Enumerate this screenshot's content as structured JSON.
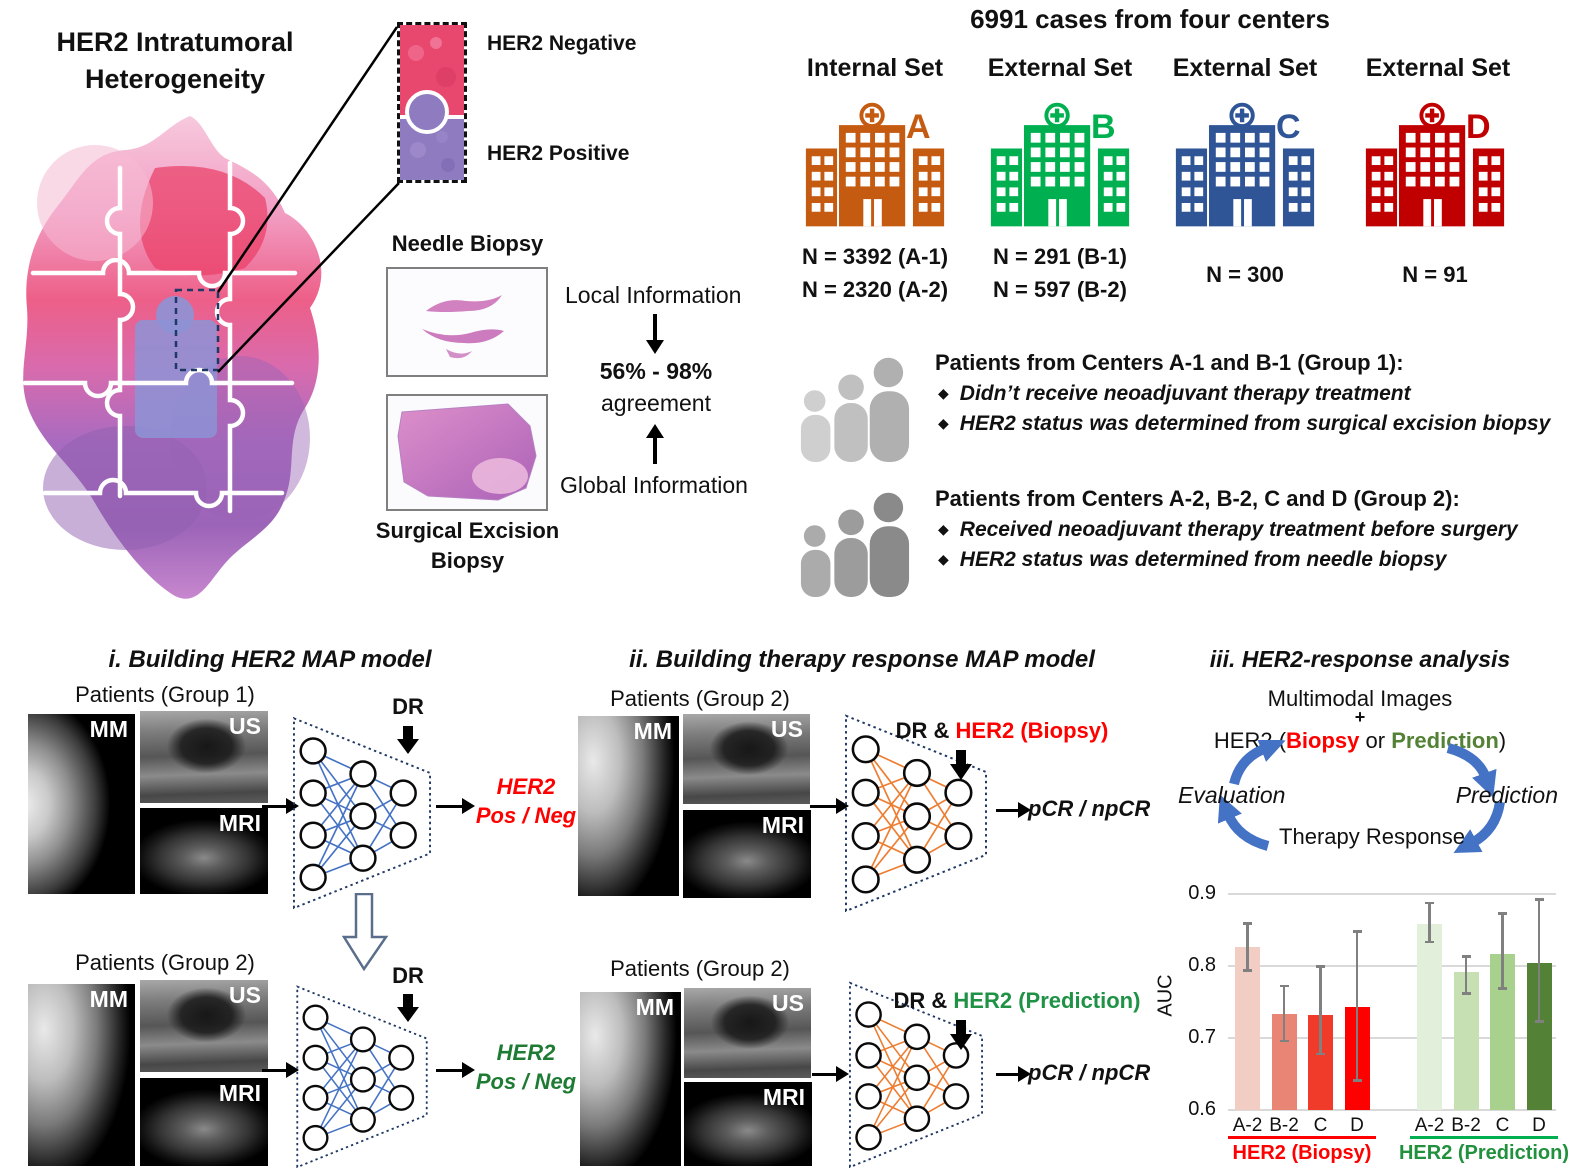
{
  "top_left": {
    "title_lines": [
      "HER2 Intratumoral",
      "Heterogeneity"
    ],
    "her2_negative": "HER2 Negative",
    "her2_positive": "HER2 Positive",
    "needle_biopsy": "Needle Biopsy",
    "surgical_lines": [
      "Surgical Excision",
      "Biopsy"
    ],
    "local_information": "Local Information",
    "agreement_value": "56% - 98%",
    "agreement_word": "agreement",
    "global_information": "Global Information"
  },
  "top_right": {
    "title": "6991 cases from four centers",
    "centers": [
      {
        "set_label": "Internal Set",
        "letter": "A",
        "color": "#C55A11",
        "n_line1": "N = 3392 (A-1)",
        "n_line2": "N = 2320 (A-2)"
      },
      {
        "set_label": "External Set",
        "letter": "B",
        "color": "#00B050",
        "n_line1": "N = 291 (B-1)",
        "n_line2": "N = 597 (B-2)"
      },
      {
        "set_label": "External Set",
        "letter": "C",
        "color": "#2F5597",
        "n_line1": "N = 300"
      },
      {
        "set_label": "External Set",
        "letter": "D",
        "color": "#C00000",
        "n_line1": "N = 91"
      }
    ],
    "bullet_char": "◆",
    "groups": [
      {
        "title": "Patients from Centers A-1 and B-1 (Group 1):",
        "bullet1": "Didn’t receive neoadjuvant therapy treatment",
        "bullet2": "HER2 status was determined from surgical excision biopsy"
      },
      {
        "title": "Patients from Centers A-2, B-2, C and D (Group 2):",
        "bullet1": "Received neoadjuvant therapy treatment before surgery",
        "bullet2": "HER2 status was determined from needle biopsy"
      }
    ]
  },
  "panels": {
    "i": {
      "title": "i. Building HER2 MAP model",
      "edge_color": "#4472C4",
      "rows": [
        {
          "patients": "Patients (Group 1)",
          "mm": "MM",
          "us": "US",
          "mri": "MRI",
          "dr": "DR",
          "out1": "HER2",
          "out2": "Pos / Neg",
          "out_color": "#FF0000"
        },
        {
          "patients": "Patients (Group 2)",
          "mm": "MM",
          "us": "US",
          "mri": "MRI",
          "dr": "DR",
          "out1": "HER2",
          "out2": "Pos / Neg",
          "out_color": "#1E7B34"
        }
      ]
    },
    "ii": {
      "title": "ii. Building therapy response MAP model",
      "edge_color": "#ED7D31",
      "rows": [
        {
          "patients": "Patients (Group 2)",
          "mm": "MM",
          "us": "US",
          "mri": "MRI",
          "dr_prefix": "DR & ",
          "dr_tag": "HER2 (Biopsy)",
          "tag_color": "#FF0000",
          "output": "pCR / npCR"
        },
        {
          "patients": "Patients (Group 2)",
          "mm": "MM",
          "us": "US",
          "mri": "MRI",
          "dr_prefix": "DR & ",
          "dr_tag": "HER2 (Prediction)",
          "tag_color": "#1F9246",
          "output": "pCR / npCR"
        }
      ]
    },
    "iii": {
      "title": "iii. HER2-response analysis",
      "multimodal": "Multimodal Images",
      "plus": "+",
      "her2_prefix": "HER2 (",
      "her2_biopsy": "Biopsy",
      "her2_or": " or ",
      "her2_prediction": "Prediction",
      "her2_suffix": ")",
      "biopsy_color": "#FF0000",
      "prediction_color": "#538135",
      "evaluation": "Evaluation",
      "prediction_label": "Prediction",
      "therapy": "Therapy Response",
      "arrow_color": "#4472C4"
    }
  },
  "chart_data": {
    "type": "bar",
    "ylabel": "AUC",
    "ylim": [
      0.6,
      0.9
    ],
    "yticks": [
      0.6,
      0.7,
      0.8,
      0.9
    ],
    "grid": true,
    "legend_position": "below",
    "categories": [
      "A-2",
      "B-2",
      "C",
      "D"
    ],
    "error_color": "#808080",
    "groups": [
      {
        "name": "HER2 (Biopsy)",
        "label_color": "#FF0000",
        "underline_color": "#FF0000",
        "bar_colors": [
          "#F2CDC3",
          "#E88575",
          "#F13B2A",
          "#FF0000"
        ],
        "values": [
          0.826,
          0.733,
          0.732,
          0.743
        ],
        "err_low": [
          0.792,
          0.694,
          0.676,
          0.639
        ],
        "err_high": [
          0.861,
          0.774,
          0.801,
          0.85
        ]
      },
      {
        "name": "HER2 (Prediction)",
        "label_color": "#21913E",
        "underline_color": "#00B050",
        "bar_colors": [
          "#E2EFDA",
          "#C6E0B4",
          "#A9D18E",
          "#538135"
        ],
        "values": [
          0.858,
          0.792,
          0.817,
          0.804
        ],
        "err_low": [
          0.832,
          0.76,
          0.767,
          0.721
        ],
        "err_high": [
          0.889,
          0.815,
          0.875,
          0.894
        ]
      }
    ]
  }
}
